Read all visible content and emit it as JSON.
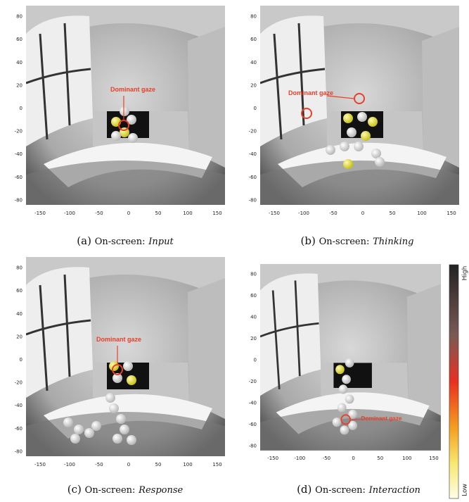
{
  "panels": [
    {
      "label": "(a)",
      "caption_prefix": "On-screen:",
      "caption_name": "Input",
      "annotation": "Dominant gaze"
    },
    {
      "label": "(b)",
      "caption_prefix": "On-screen:",
      "caption_name": "Thinking",
      "annotation": "Dominant gaze"
    },
    {
      "label": "(c)",
      "caption_prefix": "On-screen:",
      "caption_name": "Response",
      "annotation": "Dominant gaze"
    },
    {
      "label": "(d)",
      "caption_prefix": "On-screen:",
      "caption_name": "Interaction",
      "annotation": "Dominant gaze"
    }
  ],
  "x_ticks": [
    -150,
    -100,
    -50,
    0,
    50,
    100,
    150
  ],
  "y_ticks": [
    80,
    60,
    40,
    20,
    0,
    -20,
    -40,
    -60,
    -80
  ],
  "colorbar": {
    "high": "High",
    "low": "Low"
  }
}
